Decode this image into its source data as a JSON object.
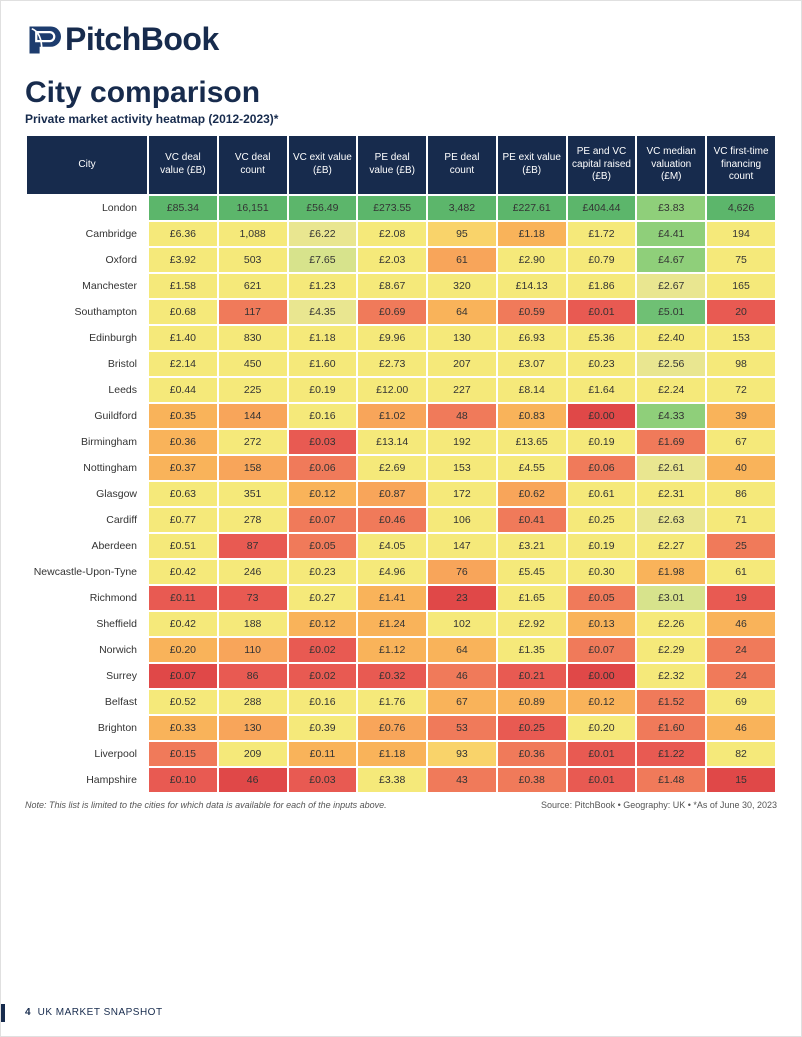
{
  "brand": {
    "name": "PitchBook",
    "logo_color": "#1d3c6e"
  },
  "title": "City comparison",
  "subtitle": "Private market activity heatmap (2012-2023)*",
  "note_left": "Note: This list is limited to the cities for which data is available for each of the inputs above.",
  "note_right": "Source: PitchBook • Geography: UK • *As of June 30, 2023",
  "page_footer": {
    "page": "4",
    "label": "UK MARKET SNAPSHOT"
  },
  "heatmap": {
    "type": "heatmap",
    "header_bg": "#172b4d",
    "header_fg": "#ffffff",
    "cell_font_size": 10.5,
    "header_font_size": 10,
    "columns": [
      "City",
      "VC deal value (£B)",
      "VC deal count",
      "VC exit value (£B)",
      "PE deal value (£B)",
      "PE deal count",
      "PE exit value (£B)",
      "PE and VC capital raised (£B)",
      "VC median valuation (£M)",
      "VC first-time financing count"
    ],
    "rows": [
      {
        "city": "London",
        "cells": [
          {
            "v": "£85.34",
            "bg": "#5cb66b"
          },
          {
            "v": "16,151",
            "bg": "#5cb66b"
          },
          {
            "v": "£56.49",
            "bg": "#5cb66b"
          },
          {
            "v": "£273.55",
            "bg": "#5cb66b"
          },
          {
            "v": "3,482",
            "bg": "#5cb66b"
          },
          {
            "v": "£227.61",
            "bg": "#5cb66b"
          },
          {
            "v": "£404.44",
            "bg": "#5cb66b"
          },
          {
            "v": "£3.83",
            "bg": "#8fcf7a"
          },
          {
            "v": "4,626",
            "bg": "#5cb66b"
          }
        ]
      },
      {
        "city": "Cambridge",
        "cells": [
          {
            "v": "£6.36",
            "bg": "#f5e97a"
          },
          {
            "v": "1,088",
            "bg": "#f5e97a"
          },
          {
            "v": "£6.22",
            "bg": "#e9e690"
          },
          {
            "v": "£2.08",
            "bg": "#f5e97a"
          },
          {
            "v": "95",
            "bg": "#f9d36a"
          },
          {
            "v": "£1.18",
            "bg": "#f9b35a"
          },
          {
            "v": "£1.72",
            "bg": "#f5e97a"
          },
          {
            "v": "£4.41",
            "bg": "#8fcf7a"
          },
          {
            "v": "194",
            "bg": "#f5e97a"
          }
        ]
      },
      {
        "city": "Oxford",
        "cells": [
          {
            "v": "£3.92",
            "bg": "#f5e97a"
          },
          {
            "v": "503",
            "bg": "#f5e97a"
          },
          {
            "v": "£7.65",
            "bg": "#d7e38c"
          },
          {
            "v": "£2.03",
            "bg": "#f5e97a"
          },
          {
            "v": "61",
            "bg": "#f8a55a"
          },
          {
            "v": "£2.90",
            "bg": "#f5e97a"
          },
          {
            "v": "£0.79",
            "bg": "#f5e97a"
          },
          {
            "v": "£4.67",
            "bg": "#8fcf7a"
          },
          {
            "v": "75",
            "bg": "#f5e97a"
          }
        ]
      },
      {
        "city": "Manchester",
        "cells": [
          {
            "v": "£1.58",
            "bg": "#f5e97a"
          },
          {
            "v": "621",
            "bg": "#f5e97a"
          },
          {
            "v": "£1.23",
            "bg": "#f5e97a"
          },
          {
            "v": "£8.67",
            "bg": "#f5e97a"
          },
          {
            "v": "320",
            "bg": "#f5e97a"
          },
          {
            "v": "£14.13",
            "bg": "#f5e97a"
          },
          {
            "v": "£1.86",
            "bg": "#f5e97a"
          },
          {
            "v": "£2.67",
            "bg": "#e9e690"
          },
          {
            "v": "165",
            "bg": "#f5e97a"
          }
        ]
      },
      {
        "city": "Southampton",
        "cells": [
          {
            "v": "£0.68",
            "bg": "#f5e97a"
          },
          {
            "v": "117",
            "bg": "#f07a5a"
          },
          {
            "v": "£4.35",
            "bg": "#e9e690"
          },
          {
            "v": "£0.69",
            "bg": "#f07a5a"
          },
          {
            "v": "64",
            "bg": "#f9b35a"
          },
          {
            "v": "£0.59",
            "bg": "#f07a5a"
          },
          {
            "v": "£0.01",
            "bg": "#e85a52"
          },
          {
            "v": "£5.01",
            "bg": "#6fc074"
          },
          {
            "v": "20",
            "bg": "#e85a52"
          }
        ]
      },
      {
        "city": "Edinburgh",
        "cells": [
          {
            "v": "£1.40",
            "bg": "#f5e97a"
          },
          {
            "v": "830",
            "bg": "#f5e97a"
          },
          {
            "v": "£1.18",
            "bg": "#f5e97a"
          },
          {
            "v": "£9.96",
            "bg": "#f5e97a"
          },
          {
            "v": "130",
            "bg": "#f5e97a"
          },
          {
            "v": "£6.93",
            "bg": "#f5e97a"
          },
          {
            "v": "£5.36",
            "bg": "#f5e97a"
          },
          {
            "v": "£2.40",
            "bg": "#f5e97a"
          },
          {
            "v": "153",
            "bg": "#f5e97a"
          }
        ]
      },
      {
        "city": "Bristol",
        "cells": [
          {
            "v": "£2.14",
            "bg": "#f5e97a"
          },
          {
            "v": "450",
            "bg": "#f5e97a"
          },
          {
            "v": "£1.60",
            "bg": "#f5e97a"
          },
          {
            "v": "£2.73",
            "bg": "#f5e97a"
          },
          {
            "v": "207",
            "bg": "#f5e97a"
          },
          {
            "v": "£3.07",
            "bg": "#f5e97a"
          },
          {
            "v": "£0.23",
            "bg": "#f5e97a"
          },
          {
            "v": "£2.56",
            "bg": "#e9e690"
          },
          {
            "v": "98",
            "bg": "#f5e97a"
          }
        ]
      },
      {
        "city": "Leeds",
        "cells": [
          {
            "v": "£0.44",
            "bg": "#f5e97a"
          },
          {
            "v": "225",
            "bg": "#f5e97a"
          },
          {
            "v": "£0.19",
            "bg": "#f5e97a"
          },
          {
            "v": "£12.00",
            "bg": "#f5e97a"
          },
          {
            "v": "227",
            "bg": "#f5e97a"
          },
          {
            "v": "£8.14",
            "bg": "#f5e97a"
          },
          {
            "v": "£1.64",
            "bg": "#f5e97a"
          },
          {
            "v": "£2.24",
            "bg": "#f5e97a"
          },
          {
            "v": "72",
            "bg": "#f5e97a"
          }
        ]
      },
      {
        "city": "Guildford",
        "cells": [
          {
            "v": "£0.35",
            "bg": "#f9b35a"
          },
          {
            "v": "144",
            "bg": "#f8a55a"
          },
          {
            "v": "£0.16",
            "bg": "#f5e97a"
          },
          {
            "v": "£1.02",
            "bg": "#f8a55a"
          },
          {
            "v": "48",
            "bg": "#f07a5a"
          },
          {
            "v": "£0.83",
            "bg": "#f9b35a"
          },
          {
            "v": "£0.00",
            "bg": "#e04848"
          },
          {
            "v": "£4.33",
            "bg": "#8fcf7a"
          },
          {
            "v": "39",
            "bg": "#f9b35a"
          }
        ]
      },
      {
        "city": "Birmingham",
        "cells": [
          {
            "v": "£0.36",
            "bg": "#f9b35a"
          },
          {
            "v": "272",
            "bg": "#f5e97a"
          },
          {
            "v": "£0.03",
            "bg": "#e85a52"
          },
          {
            "v": "£13.14",
            "bg": "#f5e97a"
          },
          {
            "v": "192",
            "bg": "#f5e97a"
          },
          {
            "v": "£13.65",
            "bg": "#f5e97a"
          },
          {
            "v": "£0.19",
            "bg": "#f5e97a"
          },
          {
            "v": "£1.69",
            "bg": "#f07a5a"
          },
          {
            "v": "67",
            "bg": "#f5e97a"
          }
        ]
      },
      {
        "city": "Nottingham",
        "cells": [
          {
            "v": "£0.37",
            "bg": "#f9b35a"
          },
          {
            "v": "158",
            "bg": "#f8a55a"
          },
          {
            "v": "£0.06",
            "bg": "#f07a5a"
          },
          {
            "v": "£2.69",
            "bg": "#f5e97a"
          },
          {
            "v": "153",
            "bg": "#f5e97a"
          },
          {
            "v": "£4.55",
            "bg": "#f5e97a"
          },
          {
            "v": "£0.06",
            "bg": "#f07a5a"
          },
          {
            "v": "£2.61",
            "bg": "#e9e690"
          },
          {
            "v": "40",
            "bg": "#f9b35a"
          }
        ]
      },
      {
        "city": "Glasgow",
        "cells": [
          {
            "v": "£0.63",
            "bg": "#f5e97a"
          },
          {
            "v": "351",
            "bg": "#f5e97a"
          },
          {
            "v": "£0.12",
            "bg": "#f9b35a"
          },
          {
            "v": "£0.87",
            "bg": "#f8a55a"
          },
          {
            "v": "172",
            "bg": "#f5e97a"
          },
          {
            "v": "£0.62",
            "bg": "#f8a55a"
          },
          {
            "v": "£0.61",
            "bg": "#f5e97a"
          },
          {
            "v": "£2.31",
            "bg": "#f5e97a"
          },
          {
            "v": "86",
            "bg": "#f5e97a"
          }
        ]
      },
      {
        "city": "Cardiff",
        "cells": [
          {
            "v": "£0.77",
            "bg": "#f5e97a"
          },
          {
            "v": "278",
            "bg": "#f5e97a"
          },
          {
            "v": "£0.07",
            "bg": "#f07a5a"
          },
          {
            "v": "£0.46",
            "bg": "#f07a5a"
          },
          {
            "v": "106",
            "bg": "#f5e97a"
          },
          {
            "v": "£0.41",
            "bg": "#f07a5a"
          },
          {
            "v": "£0.25",
            "bg": "#f5e97a"
          },
          {
            "v": "£2.63",
            "bg": "#e9e690"
          },
          {
            "v": "71",
            "bg": "#f5e97a"
          }
        ]
      },
      {
        "city": "Aberdeen",
        "cells": [
          {
            "v": "£0.51",
            "bg": "#f5e97a"
          },
          {
            "v": "87",
            "bg": "#e85a52"
          },
          {
            "v": "£0.05",
            "bg": "#f07a5a"
          },
          {
            "v": "£4.05",
            "bg": "#f5e97a"
          },
          {
            "v": "147",
            "bg": "#f5e97a"
          },
          {
            "v": "£3.21",
            "bg": "#f5e97a"
          },
          {
            "v": "£0.19",
            "bg": "#f5e97a"
          },
          {
            "v": "£2.27",
            "bg": "#f5e97a"
          },
          {
            "v": "25",
            "bg": "#f07a5a"
          }
        ]
      },
      {
        "city": "Newcastle-Upon-Tyne",
        "cells": [
          {
            "v": "£0.42",
            "bg": "#f5e97a"
          },
          {
            "v": "246",
            "bg": "#f5e97a"
          },
          {
            "v": "£0.23",
            "bg": "#f5e97a"
          },
          {
            "v": "£4.96",
            "bg": "#f5e97a"
          },
          {
            "v": "76",
            "bg": "#f8a55a"
          },
          {
            "v": "£5.45",
            "bg": "#f5e97a"
          },
          {
            "v": "£0.30",
            "bg": "#f5e97a"
          },
          {
            "v": "£1.98",
            "bg": "#f9b35a"
          },
          {
            "v": "61",
            "bg": "#f5e97a"
          }
        ]
      },
      {
        "city": "Richmond",
        "cells": [
          {
            "v": "£0.11",
            "bg": "#e85a52"
          },
          {
            "v": "73",
            "bg": "#e85a52"
          },
          {
            "v": "£0.27",
            "bg": "#f5e97a"
          },
          {
            "v": "£1.41",
            "bg": "#f9b35a"
          },
          {
            "v": "23",
            "bg": "#e04848"
          },
          {
            "v": "£1.65",
            "bg": "#f5e97a"
          },
          {
            "v": "£0.05",
            "bg": "#f07a5a"
          },
          {
            "v": "£3.01",
            "bg": "#d7e38c"
          },
          {
            "v": "19",
            "bg": "#e85a52"
          }
        ]
      },
      {
        "city": "Sheffield",
        "cells": [
          {
            "v": "£0.42",
            "bg": "#f5e97a"
          },
          {
            "v": "188",
            "bg": "#f5e97a"
          },
          {
            "v": "£0.12",
            "bg": "#f9b35a"
          },
          {
            "v": "£1.24",
            "bg": "#f9b35a"
          },
          {
            "v": "102",
            "bg": "#f5e97a"
          },
          {
            "v": "£2.92",
            "bg": "#f5e97a"
          },
          {
            "v": "£0.13",
            "bg": "#f9b35a"
          },
          {
            "v": "£2.26",
            "bg": "#f5e97a"
          },
          {
            "v": "46",
            "bg": "#f9b35a"
          }
        ]
      },
      {
        "city": "Norwich",
        "cells": [
          {
            "v": "£0.20",
            "bg": "#f9b35a"
          },
          {
            "v": "110",
            "bg": "#f8a55a"
          },
          {
            "v": "£0.02",
            "bg": "#e85a52"
          },
          {
            "v": "£1.12",
            "bg": "#f9b35a"
          },
          {
            "v": "64",
            "bg": "#f9b35a"
          },
          {
            "v": "£1.35",
            "bg": "#f5e97a"
          },
          {
            "v": "£0.07",
            "bg": "#f07a5a"
          },
          {
            "v": "£2.29",
            "bg": "#f5e97a"
          },
          {
            "v": "24",
            "bg": "#f07a5a"
          }
        ]
      },
      {
        "city": "Surrey",
        "cells": [
          {
            "v": "£0.07",
            "bg": "#e04848"
          },
          {
            "v": "86",
            "bg": "#e85a52"
          },
          {
            "v": "£0.02",
            "bg": "#e85a52"
          },
          {
            "v": "£0.32",
            "bg": "#e85a52"
          },
          {
            "v": "46",
            "bg": "#f07a5a"
          },
          {
            "v": "£0.21",
            "bg": "#e85a52"
          },
          {
            "v": "£0.00",
            "bg": "#e04848"
          },
          {
            "v": "£2.32",
            "bg": "#f5e97a"
          },
          {
            "v": "24",
            "bg": "#f07a5a"
          }
        ]
      },
      {
        "city": "Belfast",
        "cells": [
          {
            "v": "£0.52",
            "bg": "#f5e97a"
          },
          {
            "v": "288",
            "bg": "#f5e97a"
          },
          {
            "v": "£0.16",
            "bg": "#f5e97a"
          },
          {
            "v": "£1.76",
            "bg": "#f5e97a"
          },
          {
            "v": "67",
            "bg": "#f9b35a"
          },
          {
            "v": "£0.89",
            "bg": "#f9b35a"
          },
          {
            "v": "£0.12",
            "bg": "#f9b35a"
          },
          {
            "v": "£1.52",
            "bg": "#f07a5a"
          },
          {
            "v": "69",
            "bg": "#f5e97a"
          }
        ]
      },
      {
        "city": "Brighton",
        "cells": [
          {
            "v": "£0.33",
            "bg": "#f9b35a"
          },
          {
            "v": "130",
            "bg": "#f8a55a"
          },
          {
            "v": "£0.39",
            "bg": "#f5e97a"
          },
          {
            "v": "£0.76",
            "bg": "#f8a55a"
          },
          {
            "v": "53",
            "bg": "#f07a5a"
          },
          {
            "v": "£0.25",
            "bg": "#e85a52"
          },
          {
            "v": "£0.20",
            "bg": "#f5e97a"
          },
          {
            "v": "£1.60",
            "bg": "#f07a5a"
          },
          {
            "v": "46",
            "bg": "#f9b35a"
          }
        ]
      },
      {
        "city": "Liverpool",
        "cells": [
          {
            "v": "£0.15",
            "bg": "#f07a5a"
          },
          {
            "v": "209",
            "bg": "#f5e97a"
          },
          {
            "v": "£0.11",
            "bg": "#f9b35a"
          },
          {
            "v": "£1.18",
            "bg": "#f9b35a"
          },
          {
            "v": "93",
            "bg": "#f9d36a"
          },
          {
            "v": "£0.36",
            "bg": "#f07a5a"
          },
          {
            "v": "£0.01",
            "bg": "#e85a52"
          },
          {
            "v": "£1.22",
            "bg": "#e85a52"
          },
          {
            "v": "82",
            "bg": "#f5e97a"
          }
        ]
      },
      {
        "city": "Hampshire",
        "cells": [
          {
            "v": "£0.10",
            "bg": "#e85a52"
          },
          {
            "v": "46",
            "bg": "#e04848"
          },
          {
            "v": "£0.03",
            "bg": "#e85a52"
          },
          {
            "v": "£3.38",
            "bg": "#f5e97a"
          },
          {
            "v": "43",
            "bg": "#f07a5a"
          },
          {
            "v": "£0.38",
            "bg": "#f07a5a"
          },
          {
            "v": "£0.01",
            "bg": "#e85a52"
          },
          {
            "v": "£1.48",
            "bg": "#f07a5a"
          },
          {
            "v": "15",
            "bg": "#e04848"
          }
        ]
      }
    ]
  }
}
